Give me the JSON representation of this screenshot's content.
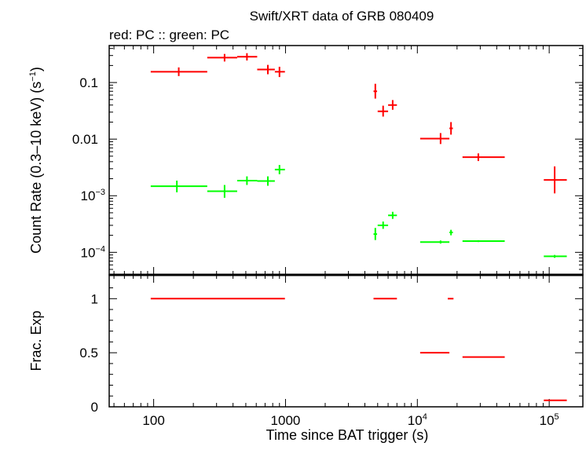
{
  "chart_data": {
    "type": "scatter",
    "title": "Swift/XRT data of GRB 080409",
    "subtitle": "red: PC  :: green: PC",
    "x_scale": "log",
    "xlim": [
      46,
      180000
    ],
    "xlabel": "Time since BAT trigger (s)",
    "x_ticks": [
      {
        "value": 100,
        "label": "100"
      },
      {
        "value": 1000,
        "label": "1000"
      },
      {
        "value": 10000,
        "label": "10",
        "sup": "4"
      },
      {
        "value": 100000,
        "label": "10",
        "sup": "5"
      }
    ],
    "top_panel": {
      "ylabel": "Count Rate (0.3–10 keV) (s",
      "ylabel_sup": "−1",
      "ylabel_end": ")",
      "y_scale": "log",
      "ylim": [
        4e-05,
        0.45
      ],
      "y_ticks": [
        {
          "value": 0.1,
          "label": "0.1"
        },
        {
          "value": 0.01,
          "label": "0.01"
        },
        {
          "value": 0.001,
          "label": "10",
          "sup": "−3"
        },
        {
          "value": 0.0001,
          "label": "10",
          "sup": "−4"
        }
      ],
      "series": [
        {
          "color": "#ff0000",
          "points": [
            {
              "x": 155,
              "xlo": 95,
              "xhi": 255,
              "y": 0.155,
              "ylo": 0.13,
              "yhi": 0.185
            },
            {
              "x": 345,
              "xlo": 255,
              "xhi": 430,
              "y": 0.275,
              "ylo": 0.235,
              "yhi": 0.32
            },
            {
              "x": 510,
              "xlo": 430,
              "xhi": 610,
              "y": 0.285,
              "ylo": 0.245,
              "yhi": 0.33
            },
            {
              "x": 735,
              "xlo": 610,
              "xhi": 830,
              "y": 0.17,
              "ylo": 0.14,
              "yhi": 0.205
            },
            {
              "x": 900,
              "xlo": 830,
              "xhi": 990,
              "y": 0.155,
              "ylo": 0.125,
              "yhi": 0.19
            },
            {
              "x": 4800,
              "xlo": 4650,
              "xhi": 4950,
              "y": 0.07,
              "ylo": 0.052,
              "yhi": 0.095
            },
            {
              "x": 5500,
              "xlo": 5000,
              "xhi": 6000,
              "y": 0.031,
              "ylo": 0.025,
              "yhi": 0.039
            },
            {
              "x": 6500,
              "xlo": 6000,
              "xhi": 7000,
              "y": 0.04,
              "ylo": 0.033,
              "yhi": 0.049
            },
            {
              "x": 15000,
              "xlo": 10500,
              "xhi": 17500,
              "y": 0.0102,
              "ylo": 0.0082,
              "yhi": 0.0128
            },
            {
              "x": 18000,
              "xlo": 17500,
              "xhi": 18600,
              "y": 0.0155,
              "ylo": 0.012,
              "yhi": 0.02
            },
            {
              "x": 29000,
              "xlo": 22000,
              "xhi": 46000,
              "y": 0.0048,
              "ylo": 0.0041,
              "yhi": 0.0056
            },
            {
              "x": 110000,
              "xlo": 91000,
              "xhi": 136000,
              "y": 0.0019,
              "ylo": 0.0011,
              "yhi": 0.0033
            }
          ]
        },
        {
          "color": "#00ff00",
          "points": [
            {
              "x": 150,
              "xlo": 95,
              "xhi": 255,
              "y": 0.00147,
              "ylo": 0.00115,
              "yhi": 0.00185
            },
            {
              "x": 345,
              "xlo": 255,
              "xhi": 430,
              "y": 0.0012,
              "ylo": 0.00092,
              "yhi": 0.00155
            },
            {
              "x": 510,
              "xlo": 430,
              "xhi": 610,
              "y": 0.00185,
              "ylo": 0.00155,
              "yhi": 0.0022
            },
            {
              "x": 735,
              "xlo": 610,
              "xhi": 830,
              "y": 0.00182,
              "ylo": 0.0015,
              "yhi": 0.0022
            },
            {
              "x": 900,
              "xlo": 830,
              "xhi": 990,
              "y": 0.0029,
              "ylo": 0.0024,
              "yhi": 0.0035
            },
            {
              "x": 4800,
              "xlo": 4650,
              "xhi": 4950,
              "y": 0.00021,
              "ylo": 0.000165,
              "yhi": 0.00027
            },
            {
              "x": 5500,
              "xlo": 5000,
              "xhi": 6000,
              "y": 0.0003,
              "ylo": 0.00026,
              "yhi": 0.00035
            },
            {
              "x": 6500,
              "xlo": 6000,
              "xhi": 7000,
              "y": 0.00045,
              "ylo": 0.00039,
              "yhi": 0.00052
            },
            {
              "x": 15000,
              "xlo": 10500,
              "xhi": 17500,
              "y": 0.000152,
              "ylo": 0.000143,
              "yhi": 0.000162
            },
            {
              "x": 18000,
              "xlo": 17500,
              "xhi": 18600,
              "y": 0.000225,
              "ylo": 0.0002,
              "yhi": 0.00025
            },
            {
              "x": 29000,
              "xlo": 22000,
              "xhi": 46000,
              "y": 0.000158,
              "ylo": 0.000152,
              "yhi": 0.000164
            },
            {
              "x": 110000,
              "xlo": 91000,
              "xhi": 136000,
              "y": 8.5e-05,
              "ylo": 8e-05,
              "yhi": 9e-05
            }
          ]
        }
      ]
    },
    "bottom_panel": {
      "ylabel": "Frac. Exp",
      "y_scale": "linear",
      "ylim": [
        0,
        1.22
      ],
      "y_ticks": [
        {
          "value": 0,
          "label": "0"
        },
        {
          "value": 0.5,
          "label": "0.5"
        },
        {
          "value": 1,
          "label": "1"
        }
      ],
      "series": [
        {
          "color": "#ff0000",
          "segments": [
            {
              "xlo": 95,
              "xhi": 990,
              "y": 1.0
            },
            {
              "xlo": 4650,
              "xhi": 7000,
              "y": 1.0
            },
            {
              "xlo": 17000,
              "xhi": 18800,
              "y": 1.0
            },
            {
              "xlo": 10500,
              "xhi": 17500,
              "y": 0.5
            },
            {
              "xlo": 22000,
              "xhi": 46000,
              "y": 0.46
            },
            {
              "xlo": 91000,
              "xhi": 136000,
              "y": 0.06
            }
          ]
        }
      ]
    }
  }
}
